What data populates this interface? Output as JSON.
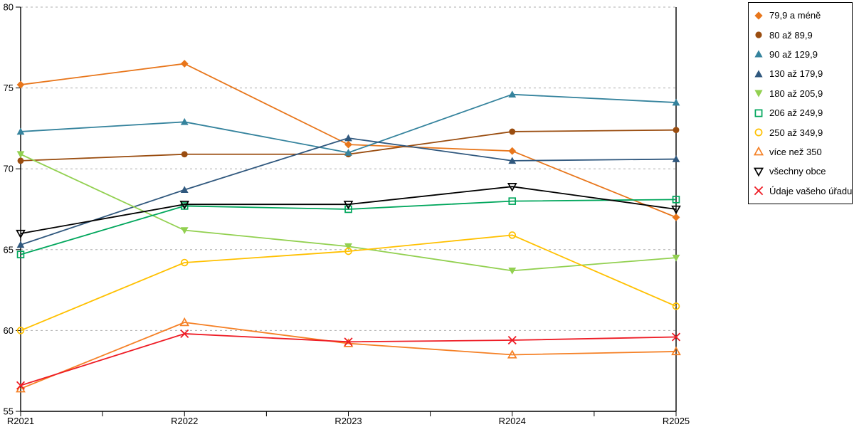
{
  "chart_data": {
    "type": "line",
    "title": "",
    "xlabel": "",
    "ylabel": "",
    "x_labels": [
      "R2021",
      "R2022",
      "R2023",
      "R2024",
      "R2025"
    ],
    "ylim": [
      55,
      80
    ],
    "yticks": [
      55,
      60,
      65,
      70,
      75,
      80
    ],
    "grid": "horizontal-dashed",
    "grid_color": "#ADADAD",
    "axis_color": "#000000",
    "legend_position": "right-boxed",
    "series": [
      {
        "name": "79,9 a méně",
        "color": "#E8761B",
        "marker": "diamond",
        "fill": "filled",
        "values": [
          75.2,
          76.5,
          71.5,
          71.1,
          67.0
        ]
      },
      {
        "name": "80 až 89,9",
        "color": "#9A4D10",
        "marker": "circle",
        "fill": "filled",
        "values": [
          70.5,
          70.9,
          70.9,
          72.3,
          72.4
        ]
      },
      {
        "name": "90 až 129,9",
        "color": "#35839D",
        "marker": "triangle-up",
        "fill": "filled",
        "values": [
          72.3,
          72.9,
          71.0,
          74.6,
          74.1
        ]
      },
      {
        "name": "130 až 179,9",
        "color": "#30587E",
        "marker": "triangle-up",
        "fill": "filled",
        "values": [
          65.3,
          68.7,
          71.9,
          70.5,
          70.6
        ]
      },
      {
        "name": "180 až 205,9",
        "color": "#92D050",
        "marker": "triangle-down",
        "fill": "filled",
        "values": [
          70.9,
          66.2,
          65.2,
          63.7,
          64.5
        ]
      },
      {
        "name": "206 až 249,9",
        "color": "#00A65C",
        "marker": "square",
        "fill": "open",
        "values": [
          64.7,
          67.7,
          67.5,
          68.0,
          68.1
        ]
      },
      {
        "name": "250 až 349,9",
        "color": "#FFC000",
        "marker": "circle",
        "fill": "open",
        "values": [
          60.0,
          64.2,
          64.9,
          65.9,
          61.5
        ]
      },
      {
        "name": "více než 350",
        "color": "#F58025",
        "marker": "triangle-up",
        "fill": "open",
        "values": [
          56.4,
          60.5,
          59.2,
          58.5,
          58.7
        ]
      },
      {
        "name": "všechny obce",
        "color": "#000000",
        "marker": "triangle-down",
        "fill": "open",
        "values": [
          66.0,
          67.8,
          67.8,
          68.9,
          67.5
        ]
      },
      {
        "name": "Údaje vašeho úřadu",
        "color": "#EE1C25",
        "marker": "x",
        "fill": "open",
        "values": [
          56.6,
          59.8,
          59.3,
          59.4,
          59.6
        ]
      }
    ]
  }
}
